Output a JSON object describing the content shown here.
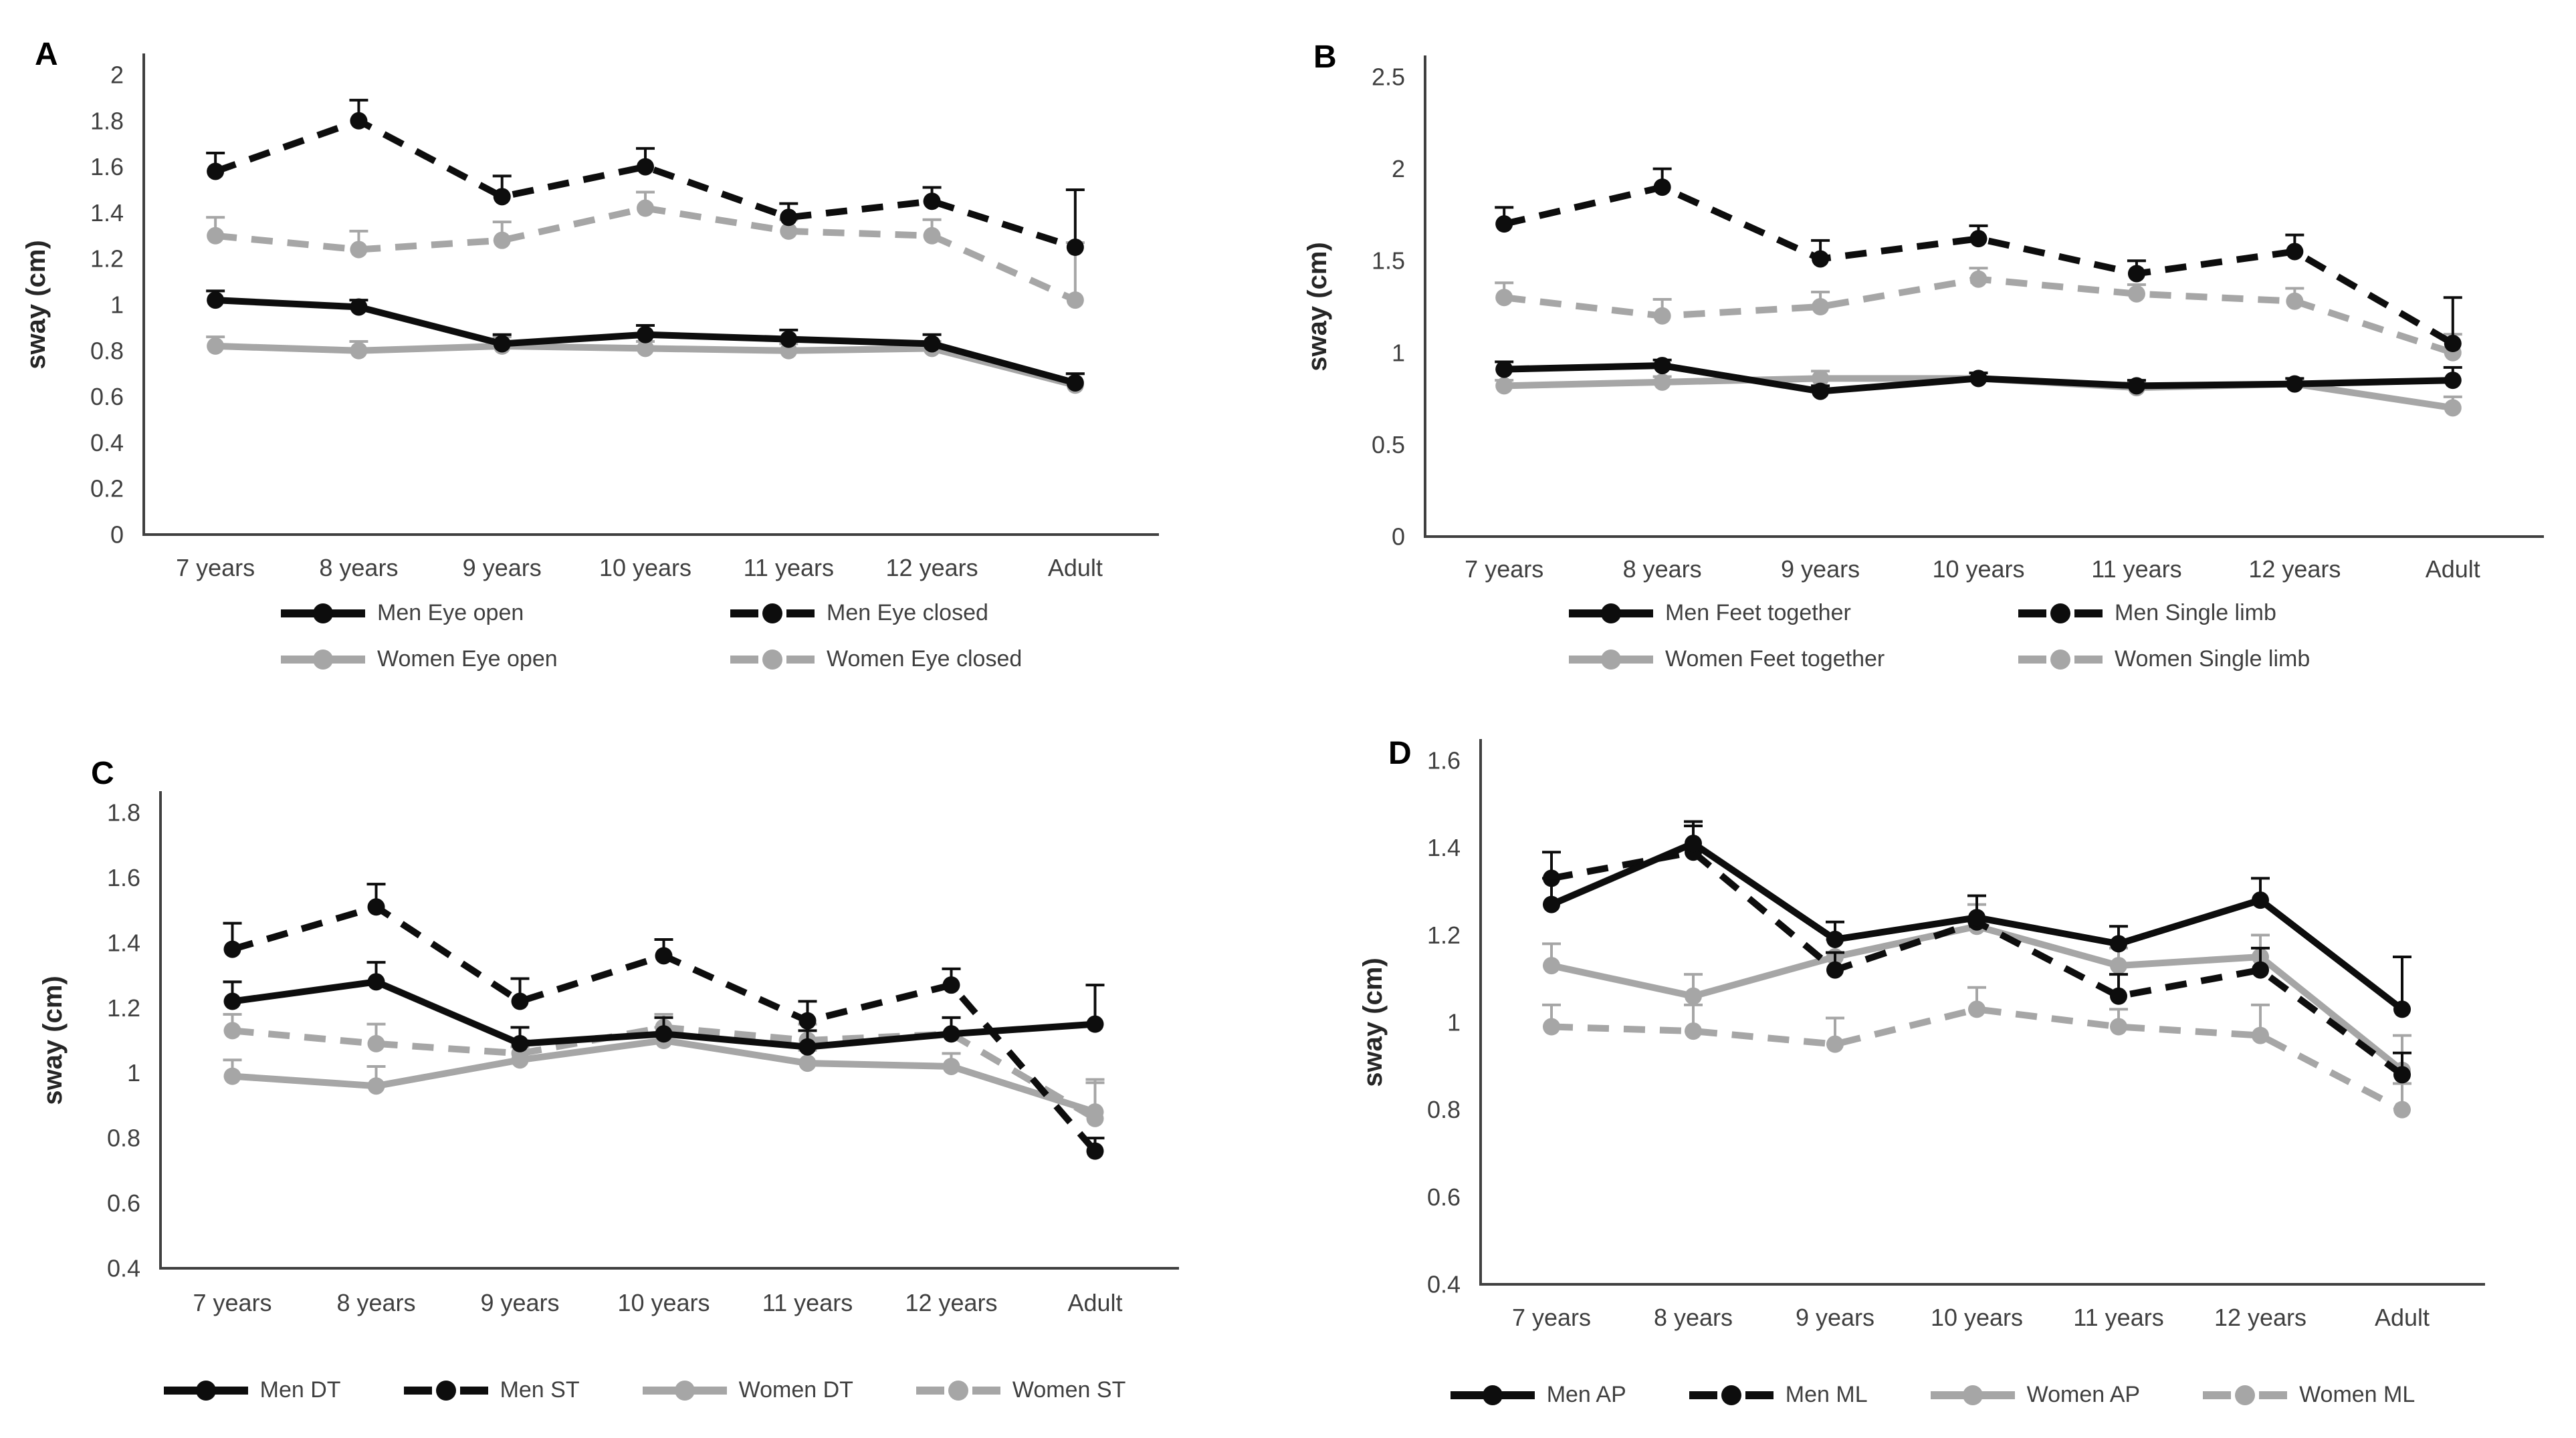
{
  "colors": {
    "series_black": "#0d0d0d",
    "series_gray": "#a6a6a6",
    "axis": "#404040",
    "text": "#3f3f3f"
  },
  "chart_data": [
    {
      "type": "line",
      "panel": "A",
      "ylabel": "sway (cm)",
      "categories": [
        "7 years",
        "8 years",
        "9 years",
        "10 years",
        "11 years",
        "12 years",
        "Adult"
      ],
      "ylim": [
        0,
        2
      ],
      "yticks": [
        0,
        0.2,
        0.4,
        0.6,
        0.8,
        1,
        1.2,
        1.4,
        1.6,
        1.8,
        2
      ],
      "grid": false,
      "legend_position": "bottom",
      "legend_layout": "grid",
      "series": [
        {
          "name": "Men Eye open",
          "color": "#0d0d0d",
          "dash": false,
          "values": [
            1.02,
            0.99,
            0.83,
            0.87,
            0.85,
            0.83,
            0.66
          ],
          "errors": [
            0.04,
            0.03,
            0.04,
            0.04,
            0.04,
            0.04,
            0.04
          ]
        },
        {
          "name": "Men Eye closed",
          "color": "#0d0d0d",
          "dash": true,
          "values": [
            1.58,
            1.8,
            1.47,
            1.6,
            1.38,
            1.45,
            1.25
          ],
          "errors": [
            0.08,
            0.09,
            0.09,
            0.08,
            0.06,
            0.06,
            0.25
          ]
        },
        {
          "name": "Women Eye open",
          "color": "#a6a6a6",
          "dash": false,
          "values": [
            0.82,
            0.8,
            0.82,
            0.81,
            0.8,
            0.81,
            0.65
          ],
          "errors": [
            0.04,
            0.04,
            0.04,
            0.03,
            0.03,
            0.03,
            0.05
          ]
        },
        {
          "name": "Women Eye closed",
          "color": "#a6a6a6",
          "dash": true,
          "values": [
            1.3,
            1.24,
            1.28,
            1.42,
            1.32,
            1.3,
            1.02
          ],
          "errors": [
            0.08,
            0.08,
            0.08,
            0.07,
            0.05,
            0.07,
            0.25
          ]
        }
      ]
    },
    {
      "type": "line",
      "panel": "B",
      "ylabel": "sway (cm)",
      "categories": [
        "7 years",
        "8 years",
        "9 years",
        "10 years",
        "11 years",
        "12 years",
        "Adult"
      ],
      "ylim": [
        0,
        2.5
      ],
      "yticks": [
        0,
        0.5,
        1,
        1.5,
        2,
        2.5
      ],
      "grid": false,
      "legend_position": "bottom",
      "legend_layout": "grid",
      "series": [
        {
          "name": "Men Feet together",
          "color": "#0d0d0d",
          "dash": false,
          "values": [
            0.91,
            0.93,
            0.79,
            0.86,
            0.82,
            0.83,
            0.85
          ],
          "errors": [
            0.04,
            0.03,
            0.03,
            0.03,
            0.03,
            0.03,
            0.07
          ]
        },
        {
          "name": "Men Single limb",
          "color": "#0d0d0d",
          "dash": true,
          "values": [
            1.7,
            1.9,
            1.51,
            1.62,
            1.43,
            1.55,
            1.05
          ],
          "errors": [
            0.09,
            0.1,
            0.1,
            0.07,
            0.07,
            0.09,
            0.25
          ]
        },
        {
          "name": "Women Feet together",
          "color": "#a6a6a6",
          "dash": false,
          "values": [
            0.82,
            0.84,
            0.86,
            0.86,
            0.81,
            0.83,
            0.7
          ],
          "errors": [
            0.03,
            0.03,
            0.04,
            0.03,
            0.03,
            0.03,
            0.06
          ]
        },
        {
          "name": "Women Single limb",
          "color": "#a6a6a6",
          "dash": true,
          "values": [
            1.3,
            1.2,
            1.25,
            1.4,
            1.32,
            1.28,
            1.0
          ],
          "errors": [
            0.08,
            0.09,
            0.08,
            0.06,
            0.05,
            0.07,
            0.1
          ]
        }
      ]
    },
    {
      "type": "line",
      "panel": "C",
      "ylabel": "sway (cm)",
      "categories": [
        "7 years",
        "8 years",
        "9 years",
        "10 years",
        "11 years",
        "12 years",
        "Adult"
      ],
      "ylim": [
        0.4,
        1.8
      ],
      "yticks": [
        0.4,
        0.6,
        0.8,
        1,
        1.2,
        1.4,
        1.6,
        1.8
      ],
      "grid": false,
      "legend_position": "bottom",
      "legend_layout": "row",
      "series": [
        {
          "name": "Men DT",
          "color": "#0d0d0d",
          "dash": false,
          "values": [
            1.22,
            1.28,
            1.09,
            1.12,
            1.08,
            1.12,
            1.15
          ],
          "errors": [
            0.06,
            0.06,
            0.05,
            0.05,
            0.05,
            0.05,
            0.12
          ]
        },
        {
          "name": "Men ST",
          "color": "#0d0d0d",
          "dash": true,
          "values": [
            1.38,
            1.51,
            1.22,
            1.36,
            1.16,
            1.27,
            0.76
          ],
          "errors": [
            0.08,
            0.07,
            0.07,
            0.05,
            0.06,
            0.05,
            0.04
          ]
        },
        {
          "name": "Women DT",
          "color": "#a6a6a6",
          "dash": false,
          "values": [
            0.99,
            0.96,
            1.04,
            1.1,
            1.03,
            1.02,
            0.88
          ],
          "errors": [
            0.05,
            0.06,
            0.04,
            0.04,
            0.04,
            0.04,
            0.09
          ]
        },
        {
          "name": "Women ST",
          "color": "#a6a6a6",
          "dash": true,
          "values": [
            1.13,
            1.09,
            1.06,
            1.14,
            1.1,
            1.12,
            0.86
          ],
          "errors": [
            0.05,
            0.06,
            0.04,
            0.04,
            0.05,
            0.05,
            0.12
          ]
        }
      ]
    },
    {
      "type": "line",
      "panel": "D",
      "ylabel": "sway (cm)",
      "categories": [
        "7 years",
        "8 years",
        "9 years",
        "10 years",
        "11 years",
        "12 years",
        "Adult"
      ],
      "ylim": [
        0.4,
        1.6
      ],
      "yticks": [
        0.4,
        0.6,
        0.8,
        1,
        1.2,
        1.4,
        1.6
      ],
      "grid": false,
      "legend_position": "bottom",
      "legend_layout": "row",
      "series": [
        {
          "name": "Men AP",
          "color": "#0d0d0d",
          "dash": false,
          "values": [
            1.27,
            1.41,
            1.19,
            1.24,
            1.18,
            1.28,
            1.03
          ],
          "errors": [
            0.06,
            0.05,
            0.04,
            0.05,
            0.04,
            0.05,
            0.12
          ]
        },
        {
          "name": "Men ML",
          "color": "#0d0d0d",
          "dash": true,
          "values": [
            1.33,
            1.39,
            1.12,
            1.23,
            1.06,
            1.12,
            0.88
          ],
          "errors": [
            0.06,
            0.06,
            0.04,
            0.06,
            0.05,
            0.05,
            0.05
          ]
        },
        {
          "name": "Women AP",
          "color": "#a6a6a6",
          "dash": false,
          "values": [
            1.13,
            1.06,
            1.15,
            1.22,
            1.13,
            1.15,
            0.89
          ],
          "errors": [
            0.05,
            0.05,
            0.04,
            0.05,
            0.04,
            0.05,
            0.08
          ]
        },
        {
          "name": "Women ML",
          "color": "#a6a6a6",
          "dash": true,
          "values": [
            0.99,
            0.98,
            0.95,
            1.03,
            0.99,
            0.97,
            0.8
          ],
          "errors": [
            0.05,
            0.06,
            0.06,
            0.05,
            0.04,
            0.07,
            0.06
          ]
        }
      ]
    }
  ]
}
